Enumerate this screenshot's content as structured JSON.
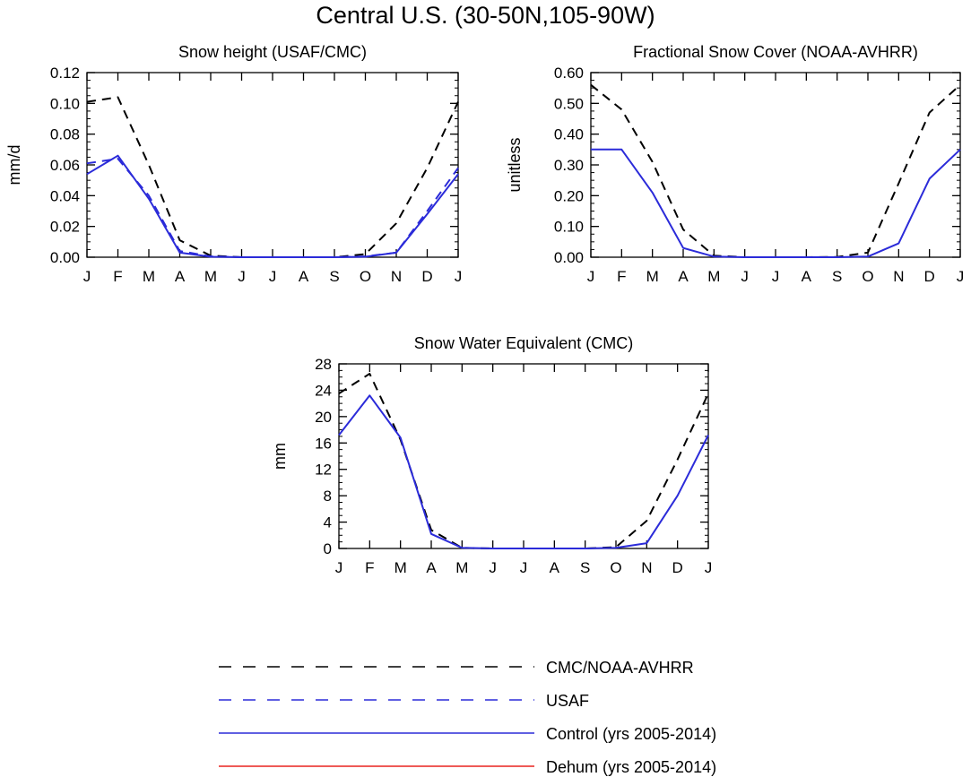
{
  "figure": {
    "title": "Central U.S. (30-50N,105-90W)"
  },
  "legend": {
    "entries": [
      {
        "label": "CMC/NOAA-AVHRR",
        "color": "#000000",
        "dash": true
      },
      {
        "label": "USAF",
        "color": "#2b2bd9",
        "dash": true
      },
      {
        "label": "Control (yrs 2005-2014)",
        "color": "#2b2bd9",
        "dash": false
      },
      {
        "label": "Dehum (yrs 2005-2014)",
        "color": "#e8231f",
        "dash": false
      }
    ]
  },
  "chart_data": [
    {
      "type": "line",
      "title": "Snow height (USAF/CMC)",
      "ylabel": "mm/d",
      "categories": [
        "J",
        "F",
        "M",
        "A",
        "M",
        "J",
        "J",
        "A",
        "S",
        "O",
        "N",
        "D",
        "J"
      ],
      "ylim": [
        0,
        0.12
      ],
      "yticks": [
        "0.00",
        "0.02",
        "0.04",
        "0.06",
        "0.08",
        "0.10",
        "0.12"
      ],
      "yminor_step": 0.005,
      "series": [
        {
          "name": "CMC/NOAA-AVHRR",
          "color": "#000000",
          "dash": true,
          "values": [
            0.101,
            0.104,
            0.06,
            0.011,
            0.001,
            0,
            0,
            0,
            0,
            0.002,
            0.022,
            0.058,
            0.101
          ]
        },
        {
          "name": "USAF",
          "color": "#2b2bd9",
          "dash": true,
          "values": [
            0.061,
            0.064,
            0.04,
            0.004,
            0.0005,
            0,
            0,
            0,
            0,
            0.0005,
            0.003,
            0.03,
            0.058
          ]
        },
        {
          "name": "Control (yrs 2005-2014)",
          "color": "#2b2bd9",
          "dash": false,
          "values": [
            0.054,
            0.066,
            0.038,
            0.003,
            0.0003,
            0,
            0,
            0,
            0,
            0.0003,
            0.003,
            0.028,
            0.054
          ]
        }
      ]
    },
    {
      "type": "line",
      "title": "Fractional Snow Cover (NOAA-AVHRR)",
      "ylabel": "unitless",
      "categories": [
        "J",
        "F",
        "M",
        "A",
        "M",
        "J",
        "J",
        "A",
        "S",
        "O",
        "N",
        "D",
        "J"
      ],
      "ylim": [
        0,
        0.6
      ],
      "yticks": [
        "0.00",
        "0.10",
        "0.20",
        "0.30",
        "0.40",
        "0.50",
        "0.60"
      ],
      "yminor_step": 0.025,
      "series": [
        {
          "name": "CMC/NOAA-AVHRR",
          "color": "#000000",
          "dash": true,
          "values": [
            0.56,
            0.48,
            0.31,
            0.09,
            0.005,
            0,
            0,
            0,
            0.001,
            0.015,
            0.24,
            0.47,
            0.56
          ]
        },
        {
          "name": "Control (yrs 2005-2014)",
          "color": "#2b2bd9",
          "dash": false,
          "values": [
            0.35,
            0.35,
            0.21,
            0.03,
            0.002,
            0,
            0,
            0,
            0,
            0.002,
            0.045,
            0.255,
            0.35
          ]
        }
      ]
    },
    {
      "type": "line",
      "title": "Snow Water Equivalent (CMC)",
      "ylabel": "mm",
      "categories": [
        "J",
        "F",
        "M",
        "A",
        "M",
        "J",
        "J",
        "A",
        "S",
        "O",
        "N",
        "D",
        "J"
      ],
      "ylim": [
        0,
        28
      ],
      "yticks": [
        "0",
        "4",
        "8",
        "12",
        "16",
        "20",
        "24",
        "28"
      ],
      "yminor_step": 1,
      "series": [
        {
          "name": "CMC/NOAA-AVHRR",
          "color": "#000000",
          "dash": true,
          "values": [
            23.5,
            26.5,
            16.5,
            2.8,
            0.1,
            0,
            0,
            0,
            0,
            0.2,
            4.2,
            13.5,
            23.5
          ]
        },
        {
          "name": "Control (yrs 2005-2014)",
          "color": "#2b2bd9",
          "dash": false,
          "values": [
            17.2,
            23.2,
            16.8,
            2.2,
            0.1,
            0,
            0,
            0,
            0,
            0.1,
            0.8,
            8.0,
            17.2
          ]
        }
      ]
    }
  ]
}
